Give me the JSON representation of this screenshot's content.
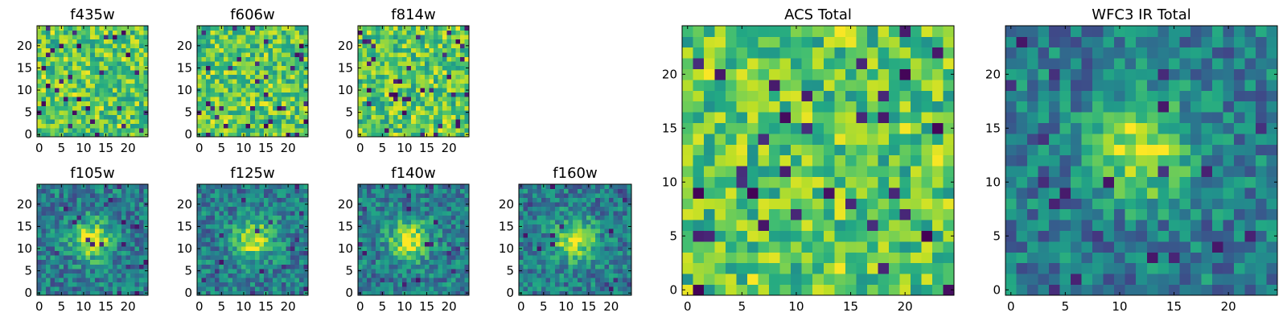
{
  "chart_data": [
    {
      "type": "heatmap",
      "id": "f435w",
      "title": "f435w",
      "xlabel": "",
      "ylabel": "",
      "grid": false,
      "xlim": [
        -0.5,
        24.5
      ],
      "ylim": [
        -0.5,
        24.5
      ],
      "xticks": [
        0,
        5,
        10,
        15,
        20
      ],
      "yticks": [
        0,
        5,
        10,
        15,
        20
      ],
      "xtick_labels": [
        "0",
        "5",
        "10",
        "15",
        "20"
      ],
      "ytick_labels": [
        "0",
        "5",
        "10",
        "15",
        "20"
      ],
      "colormap": "viridis",
      "pattern": "noise"
    },
    {
      "type": "heatmap",
      "id": "f606w",
      "title": "f606w",
      "xlabel": "",
      "ylabel": "",
      "grid": false,
      "xlim": [
        -0.5,
        24.5
      ],
      "ylim": [
        -0.5,
        24.5
      ],
      "xticks": [
        0,
        5,
        10,
        15,
        20
      ],
      "yticks": [
        0,
        5,
        10,
        15,
        20
      ],
      "xtick_labels": [
        "0",
        "5",
        "10",
        "15",
        "20"
      ],
      "ytick_labels": [
        "0",
        "5",
        "10",
        "15",
        "20"
      ],
      "colormap": "viridis",
      "pattern": "noise"
    },
    {
      "type": "heatmap",
      "id": "f814w",
      "title": "f814w",
      "xlabel": "",
      "ylabel": "",
      "grid": false,
      "xlim": [
        -0.5,
        24.5
      ],
      "ylim": [
        -0.5,
        24.5
      ],
      "xticks": [
        0,
        5,
        10,
        15,
        20
      ],
      "yticks": [
        0,
        5,
        10,
        15,
        20
      ],
      "xtick_labels": [
        "0",
        "5",
        "10",
        "15",
        "20"
      ],
      "ytick_labels": [
        "0",
        "5",
        "10",
        "15",
        "20"
      ],
      "colormap": "viridis",
      "pattern": "noise"
    },
    {
      "type": "heatmap",
      "id": "f105w",
      "title": "f105w",
      "xlabel": "",
      "ylabel": "",
      "grid": false,
      "xlim": [
        -0.5,
        24.5
      ],
      "ylim": [
        -0.5,
        24.5
      ],
      "xticks": [
        0,
        5,
        10,
        15,
        20
      ],
      "yticks": [
        0,
        5,
        10,
        15,
        20
      ],
      "xtick_labels": [
        "0",
        "5",
        "10",
        "15",
        "20"
      ],
      "ytick_labels": [
        "0",
        "5",
        "10",
        "15",
        "20"
      ],
      "colormap": "viridis",
      "pattern": "source",
      "source_center": [
        12,
        12
      ]
    },
    {
      "type": "heatmap",
      "id": "f125w",
      "title": "f125w",
      "xlabel": "",
      "ylabel": "",
      "grid": false,
      "xlim": [
        -0.5,
        24.5
      ],
      "ylim": [
        -0.5,
        24.5
      ],
      "xticks": [
        0,
        5,
        10,
        15,
        20
      ],
      "yticks": [
        0,
        5,
        10,
        15,
        20
      ],
      "xtick_labels": [
        "0",
        "5",
        "10",
        "15",
        "20"
      ],
      "ytick_labels": [
        "0",
        "5",
        "10",
        "15",
        "20"
      ],
      "colormap": "viridis",
      "pattern": "source",
      "source_center": [
        12,
        12
      ]
    },
    {
      "type": "heatmap",
      "id": "f140w",
      "title": "f140w",
      "xlabel": "",
      "ylabel": "",
      "grid": false,
      "xlim": [
        -0.5,
        24.5
      ],
      "ylim": [
        -0.5,
        24.5
      ],
      "xticks": [
        0,
        5,
        10,
        15,
        20
      ],
      "yticks": [
        0,
        5,
        10,
        15,
        20
      ],
      "xtick_labels": [
        "0",
        "5",
        "10",
        "15",
        "20"
      ],
      "ytick_labels": [
        "0",
        "5",
        "10",
        "15",
        "20"
      ],
      "colormap": "viridis",
      "pattern": "source",
      "source_center": [
        11,
        12
      ]
    },
    {
      "type": "heatmap",
      "id": "f160w",
      "title": "f160w",
      "xlabel": "",
      "ylabel": "",
      "grid": false,
      "xlim": [
        -0.5,
        24.5
      ],
      "ylim": [
        -0.5,
        24.5
      ],
      "xticks": [
        0,
        5,
        10,
        15,
        20
      ],
      "yticks": [
        0,
        5,
        10,
        15,
        20
      ],
      "xtick_labels": [
        "0",
        "5",
        "10",
        "15",
        "20"
      ],
      "ytick_labels": [
        "0",
        "5",
        "10",
        "15",
        "20"
      ],
      "colormap": "viridis",
      "pattern": "source",
      "source_center": [
        12,
        12
      ]
    },
    {
      "type": "heatmap",
      "id": "acs-total",
      "title": "ACS Total",
      "xlabel": "",
      "ylabel": "",
      "grid": false,
      "xlim": [
        -0.5,
        24.5
      ],
      "ylim": [
        -0.5,
        24.5
      ],
      "xticks": [
        0,
        5,
        10,
        15,
        20
      ],
      "yticks": [
        0,
        5,
        10,
        15,
        20
      ],
      "xtick_labels": [
        "0",
        "5",
        "10",
        "15",
        "20"
      ],
      "ytick_labels": [
        "0",
        "5",
        "10",
        "15",
        "20"
      ],
      "colormap": "viridis",
      "pattern": "noise"
    },
    {
      "type": "heatmap",
      "id": "wfc3-ir-total",
      "title": "WFC3 IR Total",
      "xlabel": "",
      "ylabel": "",
      "grid": false,
      "xlim": [
        -0.5,
        24.5
      ],
      "ylim": [
        -0.5,
        24.5
      ],
      "xticks": [
        0,
        5,
        10,
        15,
        20
      ],
      "yticks": [
        0,
        5,
        10,
        15,
        20
      ],
      "xtick_labels": [
        "0",
        "5",
        "10",
        "15",
        "20"
      ],
      "ytick_labels": [
        "0",
        "5",
        "10",
        "15",
        "20"
      ],
      "colormap": "viridis",
      "pattern": "source",
      "source_center": [
        12,
        13
      ]
    }
  ]
}
